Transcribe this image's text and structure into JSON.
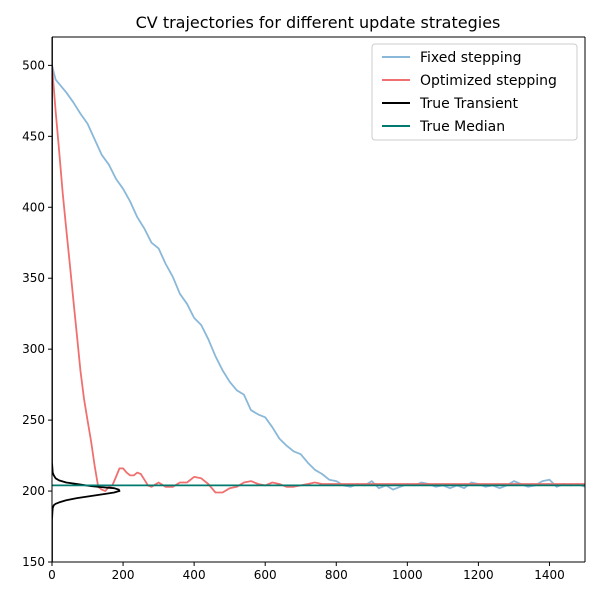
{
  "chart_data": {
    "type": "line",
    "title": "CV trajectories for different update strategies",
    "xlabel": "",
    "ylabel": "",
    "xlim": [
      0,
      1500
    ],
    "ylim": [
      150,
      520
    ],
    "xticks": [
      0,
      200,
      400,
      600,
      800,
      1000,
      1200,
      1400
    ],
    "yticks": [
      150,
      200,
      250,
      300,
      350,
      400,
      450,
      500
    ],
    "grid": false,
    "legend_position": "top-right",
    "series": [
      {
        "name": "Fixed stepping",
        "color": "#8ab8d8",
        "x": [
          0,
          10,
          20,
          40,
          60,
          80,
          100,
          120,
          140,
          160,
          180,
          200,
          220,
          240,
          260,
          280,
          300,
          320,
          340,
          360,
          380,
          400,
          420,
          440,
          460,
          480,
          500,
          520,
          540,
          560,
          580,
          600,
          620,
          640,
          660,
          680,
          700,
          720,
          740,
          760,
          780,
          800,
          820,
          840,
          860,
          880,
          900,
          920,
          940,
          960,
          980,
          1000,
          1020,
          1040,
          1060,
          1080,
          1100,
          1120,
          1140,
          1160,
          1180,
          1200,
          1220,
          1240,
          1260,
          1280,
          1300,
          1320,
          1340,
          1360,
          1380,
          1400,
          1420,
          1440,
          1460,
          1480,
          1500
        ],
        "y": [
          500,
          490,
          487,
          481,
          474,
          466,
          459,
          448,
          437,
          430,
          420,
          413,
          404,
          393,
          385,
          375,
          371,
          360,
          351,
          339,
          332,
          322,
          317,
          307,
          295,
          285,
          277,
          271,
          268,
          257,
          254,
          252,
          245,
          237,
          232,
          228,
          226,
          220,
          215,
          212,
          208,
          207,
          204,
          203,
          205,
          204,
          207,
          202,
          204,
          201,
          203,
          205,
          204,
          206,
          205,
          203,
          204,
          202,
          204,
          202,
          206,
          205,
          203,
          204,
          202,
          204,
          207,
          205,
          203,
          204,
          207,
          208,
          203,
          205,
          204,
          205,
          203
        ]
      },
      {
        "name": "Optimized stepping",
        "color": "#f07070",
        "x": [
          0,
          10,
          20,
          30,
          40,
          50,
          60,
          70,
          80,
          90,
          100,
          110,
          120,
          130,
          140,
          150,
          160,
          170,
          180,
          190,
          200,
          210,
          220,
          230,
          240,
          250,
          260,
          270,
          280,
          300,
          320,
          340,
          360,
          380,
          400,
          420,
          440,
          460,
          480,
          500,
          520,
          540,
          560,
          580,
          600,
          620,
          640,
          660,
          680,
          700,
          720,
          740,
          760,
          780,
          800,
          850,
          900,
          950,
          1000,
          1050,
          1100,
          1150,
          1200,
          1250,
          1300,
          1350,
          1400,
          1450,
          1500
        ],
        "y": [
          500,
          468,
          440,
          410,
          385,
          360,
          335,
          310,
          285,
          265,
          250,
          235,
          218,
          203,
          201,
          200,
          203,
          204,
          210,
          216,
          216,
          213,
          211,
          211,
          213,
          212,
          208,
          204,
          203,
          206,
          203,
          203,
          206,
          206,
          210,
          209,
          205,
          199,
          199,
          202,
          203,
          206,
          207,
          205,
          204,
          206,
          205,
          203,
          203,
          204,
          205,
          206,
          205,
          205,
          205,
          205,
          205,
          205,
          205,
          205,
          205,
          205,
          205,
          205,
          205,
          205,
          205,
          205,
          205
        ]
      },
      {
        "name": "True Transient",
        "color": "#000000",
        "x": [
          0,
          0,
          0,
          1,
          2,
          5,
          10,
          20,
          40,
          70,
          110,
          150,
          175,
          188,
          190,
          188,
          175,
          150,
          110,
          70,
          40,
          20,
          10,
          5,
          2,
          1,
          0,
          0
        ],
        "y": [
          150,
          170,
          180,
          185,
          188,
          190,
          191,
          192,
          193.5,
          195,
          196.5,
          198,
          199,
          200,
          200,
          201,
          202,
          202.5,
          203.5,
          205,
          206,
          207.5,
          209,
          211,
          213,
          216,
          220,
          520
        ]
      },
      {
        "name": "True Median",
        "color": "#007a6e",
        "x": [
          0,
          1500
        ],
        "y": [
          204,
          204
        ]
      }
    ]
  }
}
